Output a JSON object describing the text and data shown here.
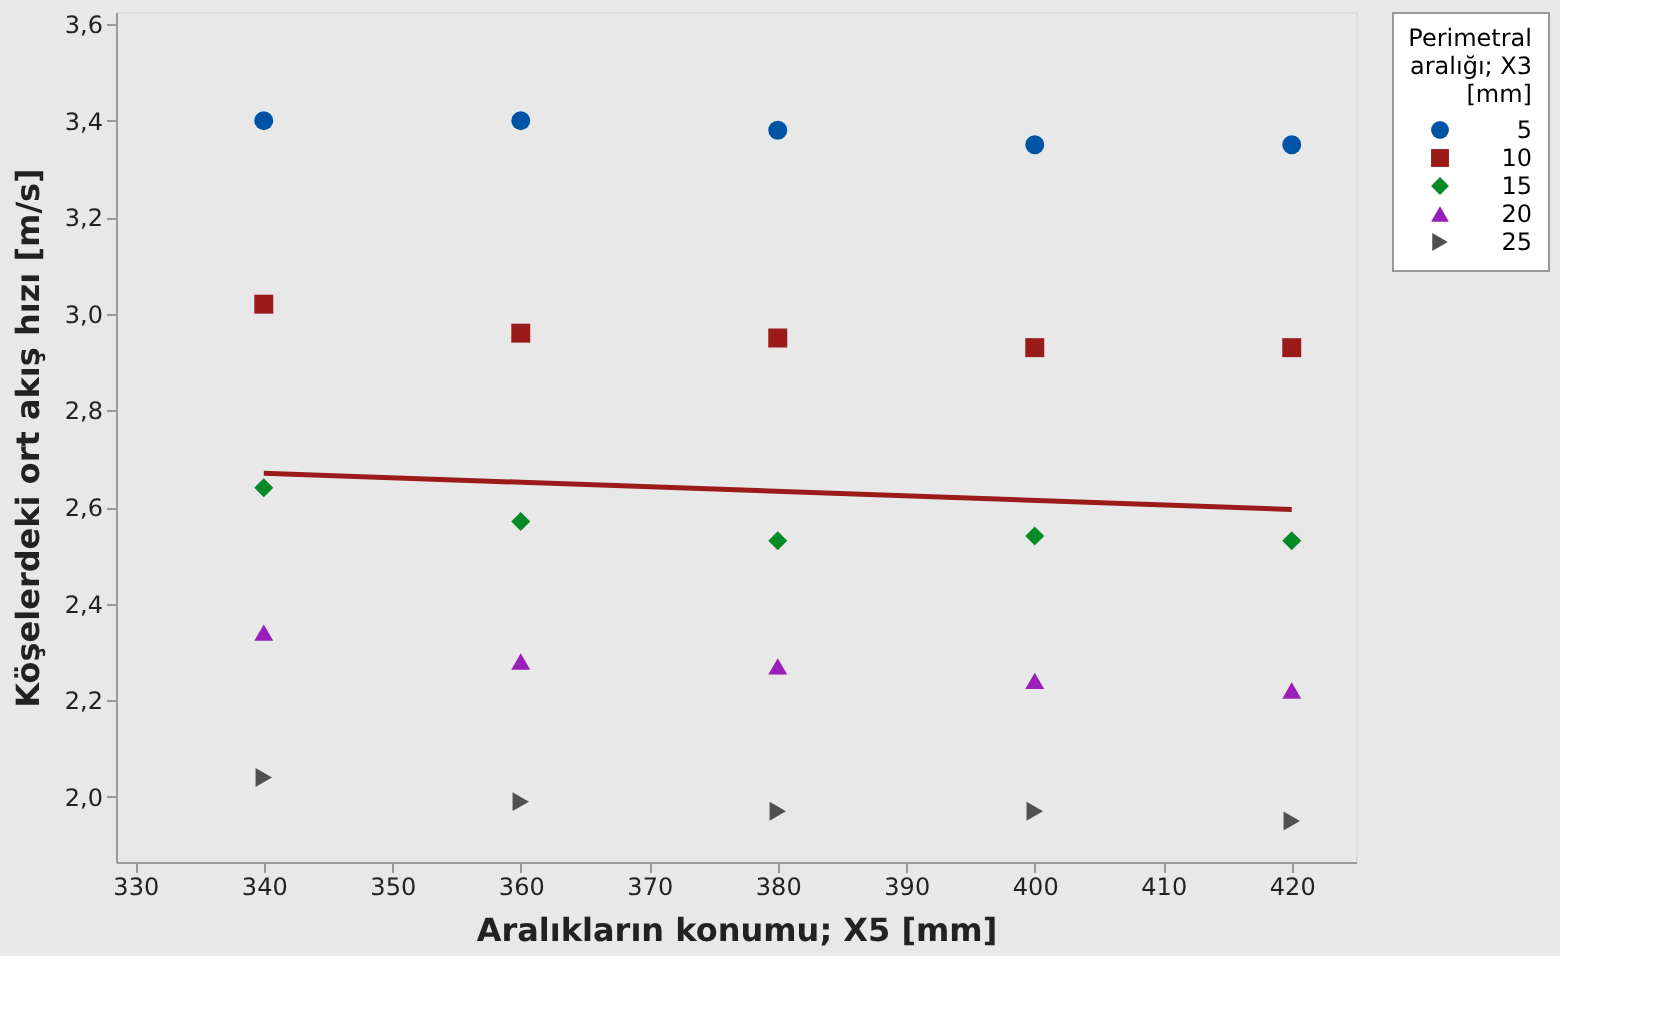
{
  "chart_data": {
    "type": "scatter",
    "xlabel": "Aralıkların konumu; X5 [mm]",
    "ylabel": "Köşelerdeki ort akış hızı [m/s]",
    "legend_title": "Perimetral aralığı; X3 [mm]",
    "x": [
      340,
      360,
      380,
      400,
      420
    ],
    "series": [
      {
        "name": "5",
        "color": "#0054a6",
        "marker": "circle",
        "values": [
          3.4,
          3.4,
          3.38,
          3.35,
          3.35
        ]
      },
      {
        "name": "10",
        "color": "#9b1b1b",
        "marker": "square",
        "values": [
          3.02,
          2.96,
          2.95,
          2.93,
          2.93
        ]
      },
      {
        "name": "15",
        "color": "#058a25",
        "marker": "diamond",
        "values": [
          2.64,
          2.57,
          2.53,
          2.54,
          2.53
        ]
      },
      {
        "name": "20",
        "color": "#9a1fb8",
        "marker": "triangle",
        "values": [
          2.34,
          2.28,
          2.27,
          2.24,
          2.22
        ]
      },
      {
        "name": "25",
        "color": "#505050",
        "marker": "triangle-right",
        "values": [
          2.04,
          1.99,
          1.97,
          1.97,
          1.95
        ]
      },
      {
        "type": "line",
        "color": "#9b1b1b",
        "x": [
          340,
          420
        ],
        "values": [
          2.67,
          2.595
        ]
      }
    ],
    "xlim": [
      328.5,
      425
    ],
    "xticks": [
      330,
      340,
      350,
      360,
      370,
      380,
      390,
      400,
      410,
      420
    ],
    "ylim": [
      1.865,
      3.625
    ],
    "yticks": [
      {
        "value": 2.0,
        "label": "2,0"
      },
      {
        "value": 2.2,
        "label": "2,2"
      },
      {
        "value": 2.4,
        "label": "2,4"
      },
      {
        "value": 2.6,
        "label": "2,6"
      },
      {
        "value": 2.8,
        "label": "2,8"
      },
      {
        "value": 3.0,
        "label": "3,0"
      },
      {
        "value": 3.2,
        "label": "3,2"
      },
      {
        "value": 3.4,
        "label": "3,4"
      },
      {
        "value": 3.6,
        "label": "3,6"
      }
    ],
    "grid": false,
    "legend": "top right"
  }
}
